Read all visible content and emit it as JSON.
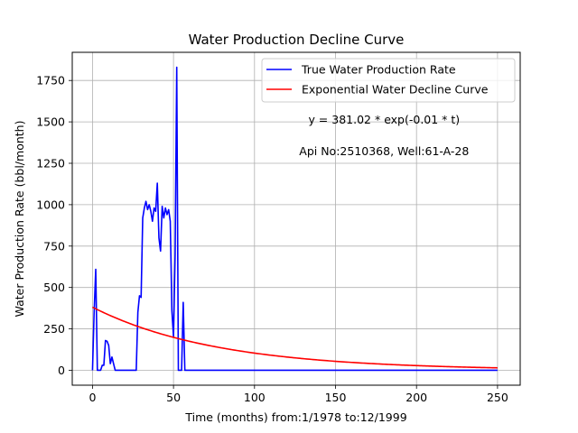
{
  "chart_data": {
    "type": "line",
    "title": "Water Production Decline Curve",
    "xlabel": "Time (months) from:1/1978 to:12/1999",
    "ylabel": "Water Production Rate (bbl/month)",
    "xlim": [
      -12.5,
      264
    ],
    "ylim": [
      -90,
      1920
    ],
    "xticks": [
      0,
      50,
      100,
      150,
      200,
      250
    ],
    "yticks": [
      0,
      250,
      500,
      750,
      1000,
      1250,
      1500,
      1750
    ],
    "grid": true,
    "legend_position": "top-right",
    "annotations": [
      {
        "text": "y = 381.02 * exp(-0.01 * t)",
        "x": 180,
        "y": 1490
      },
      {
        "text": "Api No:2510368, Well:61-A-28",
        "x": 180,
        "y": 1300
      }
    ],
    "series": [
      {
        "name": "True Water Production Rate",
        "color": "#0000ff",
        "x": [
          0,
          1,
          2,
          3,
          4,
          5,
          6,
          7,
          8,
          9,
          10,
          11,
          12,
          13,
          14,
          15,
          16,
          17,
          18,
          19,
          20,
          21,
          22,
          23,
          24,
          25,
          26,
          27,
          28,
          29,
          30,
          31,
          32,
          33,
          34,
          35,
          36,
          37,
          38,
          39,
          40,
          41,
          42,
          43,
          44,
          45,
          46,
          47,
          48,
          49,
          50,
          51,
          52,
          53,
          54,
          55,
          56,
          57,
          58,
          60,
          100,
          150,
          200,
          250
        ],
        "y": [
          0,
          350,
          610,
          0,
          0,
          0,
          30,
          30,
          180,
          175,
          150,
          40,
          80,
          40,
          0,
          0,
          0,
          0,
          0,
          0,
          0,
          0,
          0,
          0,
          0,
          0,
          0,
          0,
          350,
          450,
          440,
          920,
          980,
          1020,
          970,
          1000,
          960,
          900,
          980,
          960,
          1130,
          800,
          720,
          990,
          920,
          980,
          940,
          970,
          900,
          360,
          200,
          700,
          1830,
          0,
          0,
          0,
          410,
          0,
          0,
          0,
          0,
          0,
          0,
          0
        ]
      },
      {
        "name": "Exponential Water Decline Curve",
        "color": "#ff0000",
        "model": {
          "a": 381.02,
          "b": -0.013,
          "x_start": 0,
          "x_end": 250
        }
      }
    ]
  }
}
